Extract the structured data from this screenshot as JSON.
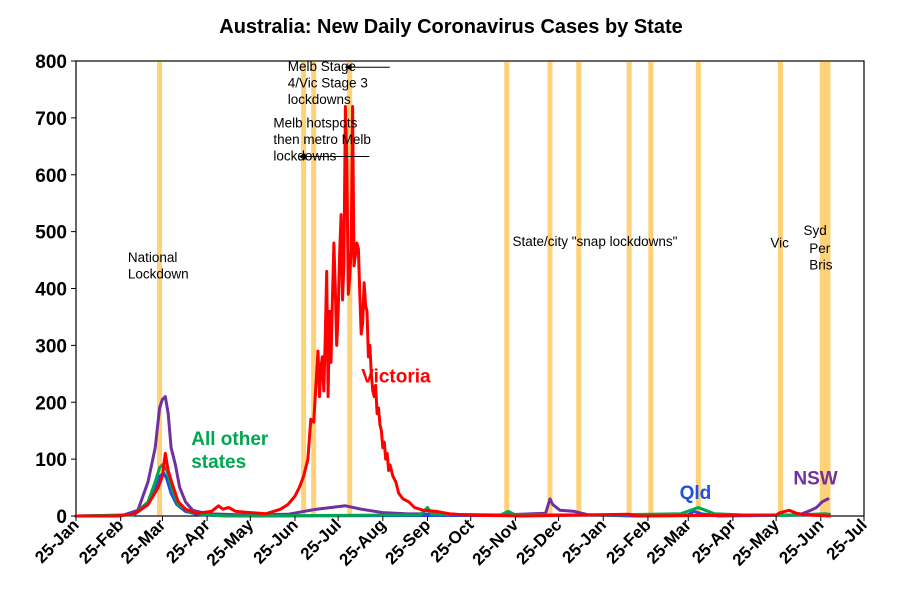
{
  "chart_data": {
    "type": "line",
    "title": "Australia: New Daily Coronavirus Cases by State",
    "xlabel": "",
    "ylabel": "",
    "ylim": [
      0,
      800
    ],
    "yticks": [
      "0",
      "100",
      "200",
      "300",
      "400",
      "500",
      "600",
      "700",
      "800"
    ],
    "xlim": [
      "2020-01-25",
      "2021-07-25"
    ],
    "xticks": [
      {
        "date": "2020-01-25",
        "label": "25-Jan"
      },
      {
        "date": "2020-02-25",
        "label": "25-Feb"
      },
      {
        "date": "2020-03-25",
        "label": "25-Mar"
      },
      {
        "date": "2020-04-25",
        "label": "25-Apr"
      },
      {
        "date": "2020-05-25",
        "label": "25-May"
      },
      {
        "date": "2020-06-25",
        "label": "25-Jun"
      },
      {
        "date": "2020-07-25",
        "label": "25-Jul"
      },
      {
        "date": "2020-08-25",
        "label": "25-Aug"
      },
      {
        "date": "2020-09-25",
        "label": "25-Sep"
      },
      {
        "date": "2020-10-25",
        "label": "25-Oct"
      },
      {
        "date": "2020-11-25",
        "label": "25-Nov"
      },
      {
        "date": "2020-12-25",
        "label": "25-Dec"
      },
      {
        "date": "2021-01-25",
        "label": "25-Jan"
      },
      {
        "date": "2021-02-25",
        "label": "25-Feb"
      },
      {
        "date": "2021-03-25",
        "label": "25-Mar"
      },
      {
        "date": "2021-04-25",
        "label": "25-Apr"
      },
      {
        "date": "2021-05-25",
        "label": "25-May"
      },
      {
        "date": "2021-06-25",
        "label": "25-Jun"
      },
      {
        "date": "2021-07-25",
        "label": "25-Jul"
      }
    ],
    "grid": false,
    "lockdown_dates": [
      "2020-03-23",
      "2020-07-01",
      "2020-07-08",
      "2020-08-02",
      "2020-11-19",
      "2020-12-19",
      "2021-01-08",
      "2021-02-12",
      "2021-02-27",
      "2021-04-01",
      "2021-05-28",
      "2021-06-26",
      "2021-06-28",
      "2021-06-30"
    ],
    "lockdown_color": "#ffd27a",
    "series": [
      {
        "name": "Victoria",
        "color": "#ff0000",
        "points": [
          [
            "2020-01-25",
            0
          ],
          [
            "2020-02-20",
            0
          ],
          [
            "2020-03-05",
            3
          ],
          [
            "2020-03-15",
            20
          ],
          [
            "2020-03-22",
            50
          ],
          [
            "2020-03-25",
            70
          ],
          [
            "2020-03-27",
            110
          ],
          [
            "2020-03-29",
            80
          ],
          [
            "2020-04-01",
            55
          ],
          [
            "2020-04-05",
            25
          ],
          [
            "2020-04-10",
            12
          ],
          [
            "2020-04-18",
            5
          ],
          [
            "2020-04-28",
            8
          ],
          [
            "2020-05-03",
            18
          ],
          [
            "2020-05-06",
            12
          ],
          [
            "2020-05-10",
            15
          ],
          [
            "2020-05-15",
            8
          ],
          [
            "2020-05-25",
            6
          ],
          [
            "2020-06-05",
            4
          ],
          [
            "2020-06-15",
            12
          ],
          [
            "2020-06-20",
            20
          ],
          [
            "2020-06-25",
            35
          ],
          [
            "2020-06-28",
            50
          ],
          [
            "2020-07-01",
            70
          ],
          [
            "2020-07-04",
            100
          ],
          [
            "2020-07-06",
            170
          ],
          [
            "2020-07-08",
            165
          ],
          [
            "2020-07-10",
            250
          ],
          [
            "2020-07-11",
            290
          ],
          [
            "2020-07-12",
            210
          ],
          [
            "2020-07-13",
            260
          ],
          [
            "2020-07-14",
            280
          ],
          [
            "2020-07-15",
            220
          ],
          [
            "2020-07-16",
            310
          ],
          [
            "2020-07-17",
            430
          ],
          [
            "2020-07-18",
            210
          ],
          [
            "2020-07-19",
            360
          ],
          [
            "2020-07-20",
            270
          ],
          [
            "2020-07-21",
            380
          ],
          [
            "2020-07-22",
            480
          ],
          [
            "2020-07-23",
            400
          ],
          [
            "2020-07-24",
            300
          ],
          [
            "2020-07-25",
            360
          ],
          [
            "2020-07-26",
            460
          ],
          [
            "2020-07-27",
            530
          ],
          [
            "2020-07-28",
            380
          ],
          [
            "2020-07-29",
            440
          ],
          [
            "2020-07-30",
            720
          ],
          [
            "2020-07-31",
            620
          ],
          [
            "2020-08-01",
            390
          ],
          [
            "2020-08-02",
            420
          ],
          [
            "2020-08-03",
            470
          ],
          [
            "2020-08-04",
            720
          ],
          [
            "2020-08-05",
            440
          ],
          [
            "2020-08-06",
            460
          ],
          [
            "2020-08-07",
            480
          ],
          [
            "2020-08-08",
            470
          ],
          [
            "2020-08-09",
            390
          ],
          [
            "2020-08-10",
            320
          ],
          [
            "2020-08-11",
            340
          ],
          [
            "2020-08-12",
            410
          ],
          [
            "2020-08-13",
            370
          ],
          [
            "2020-08-14",
            360
          ],
          [
            "2020-08-15",
            280
          ],
          [
            "2020-08-16",
            300
          ],
          [
            "2020-08-17",
            250
          ],
          [
            "2020-08-18",
            220
          ],
          [
            "2020-08-19",
            210
          ],
          [
            "2020-08-20",
            230
          ],
          [
            "2020-08-21",
            180
          ],
          [
            "2020-08-22",
            190
          ],
          [
            "2020-08-23",
            160
          ],
          [
            "2020-08-24",
            150
          ],
          [
            "2020-08-25",
            120
          ],
          [
            "2020-08-26",
            130
          ],
          [
            "2020-08-27",
            100
          ],
          [
            "2020-08-28",
            110
          ],
          [
            "2020-08-29",
            80
          ],
          [
            "2020-08-30",
            90
          ],
          [
            "2020-09-01",
            70
          ],
          [
            "2020-09-03",
            60
          ],
          [
            "2020-09-05",
            40
          ],
          [
            "2020-09-08",
            30
          ],
          [
            "2020-09-12",
            25
          ],
          [
            "2020-09-16",
            15
          ],
          [
            "2020-09-22",
            10
          ],
          [
            "2020-10-01",
            8
          ],
          [
            "2020-10-10",
            4
          ],
          [
            "2020-10-20",
            2
          ],
          [
            "2020-11-01",
            1
          ],
          [
            "2020-12-01",
            0
          ],
          [
            "2021-02-12",
            3
          ],
          [
            "2021-02-18",
            0
          ],
          [
            "2021-05-25",
            2
          ],
          [
            "2021-05-28",
            6
          ],
          [
            "2021-06-03",
            10
          ],
          [
            "2021-06-08",
            5
          ],
          [
            "2021-06-15",
            2
          ],
          [
            "2021-07-01",
            0
          ]
        ]
      },
      {
        "name": "NSW",
        "color": "#7030a0",
        "points": [
          [
            "2020-01-25",
            0
          ],
          [
            "2020-02-25",
            0
          ],
          [
            "2020-03-08",
            10
          ],
          [
            "2020-03-15",
            60
          ],
          [
            "2020-03-20",
            120
          ],
          [
            "2020-03-23",
            190
          ],
          [
            "2020-03-25",
            205
          ],
          [
            "2020-03-27",
            210
          ],
          [
            "2020-03-29",
            180
          ],
          [
            "2020-03-31",
            120
          ],
          [
            "2020-04-03",
            90
          ],
          [
            "2020-04-06",
            50
          ],
          [
            "2020-04-10",
            25
          ],
          [
            "2020-04-15",
            10
          ],
          [
            "2020-04-25",
            4
          ],
          [
            "2020-05-20",
            2
          ],
          [
            "2020-06-20",
            3
          ],
          [
            "2020-07-10",
            12
          ],
          [
            "2020-07-20",
            15
          ],
          [
            "2020-07-30",
            18
          ],
          [
            "2020-08-10",
            12
          ],
          [
            "2020-08-25",
            6
          ],
          [
            "2020-09-10",
            4
          ],
          [
            "2020-10-10",
            3
          ],
          [
            "2020-11-10",
            1
          ],
          [
            "2020-12-16",
            5
          ],
          [
            "2020-12-19",
            30
          ],
          [
            "2020-12-21",
            20
          ],
          [
            "2020-12-26",
            10
          ],
          [
            "2021-01-05",
            8
          ],
          [
            "2021-01-15",
            2
          ],
          [
            "2021-02-15",
            0
          ],
          [
            "2021-04-01",
            1
          ],
          [
            "2021-06-10",
            2
          ],
          [
            "2021-06-18",
            10
          ],
          [
            "2021-06-22",
            15
          ],
          [
            "2021-06-26",
            25
          ],
          [
            "2021-06-30",
            30
          ]
        ]
      },
      {
        "name": "Qld",
        "color": "#1f4fe0",
        "points": [
          [
            "2020-01-25",
            0
          ],
          [
            "2020-03-05",
            2
          ],
          [
            "2020-03-15",
            20
          ],
          [
            "2020-03-20",
            45
          ],
          [
            "2020-03-23",
            70
          ],
          [
            "2020-03-26",
            75
          ],
          [
            "2020-03-28",
            65
          ],
          [
            "2020-03-31",
            40
          ],
          [
            "2020-04-04",
            20
          ],
          [
            "2020-04-10",
            8
          ],
          [
            "2020-04-20",
            2
          ],
          [
            "2020-05-10",
            0
          ],
          [
            "2021-03-25",
            2
          ],
          [
            "2021-03-29",
            8
          ],
          [
            "2021-04-03",
            4
          ],
          [
            "2021-04-15",
            0
          ],
          [
            "2021-06-28",
            2
          ],
          [
            "2021-07-01",
            3
          ]
        ]
      },
      {
        "name": "All other states",
        "color": "#00a650",
        "points": [
          [
            "2020-01-25",
            0
          ],
          [
            "2020-03-05",
            2
          ],
          [
            "2020-03-15",
            25
          ],
          [
            "2020-03-20",
            60
          ],
          [
            "2020-03-23",
            85
          ],
          [
            "2020-03-25",
            90
          ],
          [
            "2020-03-28",
            80
          ],
          [
            "2020-04-01",
            45
          ],
          [
            "2020-04-05",
            20
          ],
          [
            "2020-04-12",
            8
          ],
          [
            "2020-04-25",
            2
          ],
          [
            "2020-05-10",
            0
          ],
          [
            "2020-09-20",
            2
          ],
          [
            "2020-09-25",
            15
          ],
          [
            "2020-09-28",
            3
          ],
          [
            "2020-11-15",
            2
          ],
          [
            "2020-11-20",
            8
          ],
          [
            "2020-11-25",
            2
          ],
          [
            "2021-02-01",
            2
          ],
          [
            "2021-03-20",
            4
          ],
          [
            "2021-04-01",
            15
          ],
          [
            "2021-04-06",
            10
          ],
          [
            "2021-04-12",
            4
          ],
          [
            "2021-05-01",
            2
          ],
          [
            "2021-06-01",
            1
          ],
          [
            "2021-06-28",
            4
          ],
          [
            "2021-07-01",
            3
          ]
        ]
      }
    ],
    "series_labels": [
      {
        "series": "Victoria",
        "lines": [
          "Victoria"
        ],
        "date": "2020-08-10",
        "value": 235
      },
      {
        "series": "All other states",
        "lines": [
          "All other",
          "states"
        ],
        "date": "2020-04-14",
        "value": 125
      },
      {
        "series": "Qld",
        "lines": [
          "Qld"
        ],
        "date": "2021-03-19",
        "value": 30
      },
      {
        "series": "NSW",
        "lines": [
          "NSW"
        ],
        "date": "2021-06-06",
        "value": 55
      }
    ],
    "annotations": [
      {
        "lines": [
          "Melb Stage",
          "4/Vic Stage 3",
          "lockdowns"
        ],
        "date": "2020-06-20",
        "value": 782,
        "arrow_to_date": "2020-08-02"
      },
      {
        "lines": [
          "Melb hotspots",
          "then metro Melb",
          "lockdowns"
        ],
        "date": "2020-06-10",
        "value": 683,
        "arrow_to_date": "2020-07-01"
      },
      {
        "lines": [
          "National",
          "Lockdown"
        ],
        "date": "2020-03-01",
        "value": 447
      },
      {
        "lines": [
          "State/city \"snap lockdowns\""
        ],
        "date": "2020-11-23",
        "value": 475
      },
      {
        "lines": [
          "Vic"
        ],
        "date": "2021-05-21",
        "value": 472
      },
      {
        "lines": [
          "Syd"
        ],
        "date": "2021-06-13",
        "value": 494
      },
      {
        "lines": [
          "Per",
          "Bris"
        ],
        "date": "2021-06-17",
        "value": 462
      }
    ]
  }
}
